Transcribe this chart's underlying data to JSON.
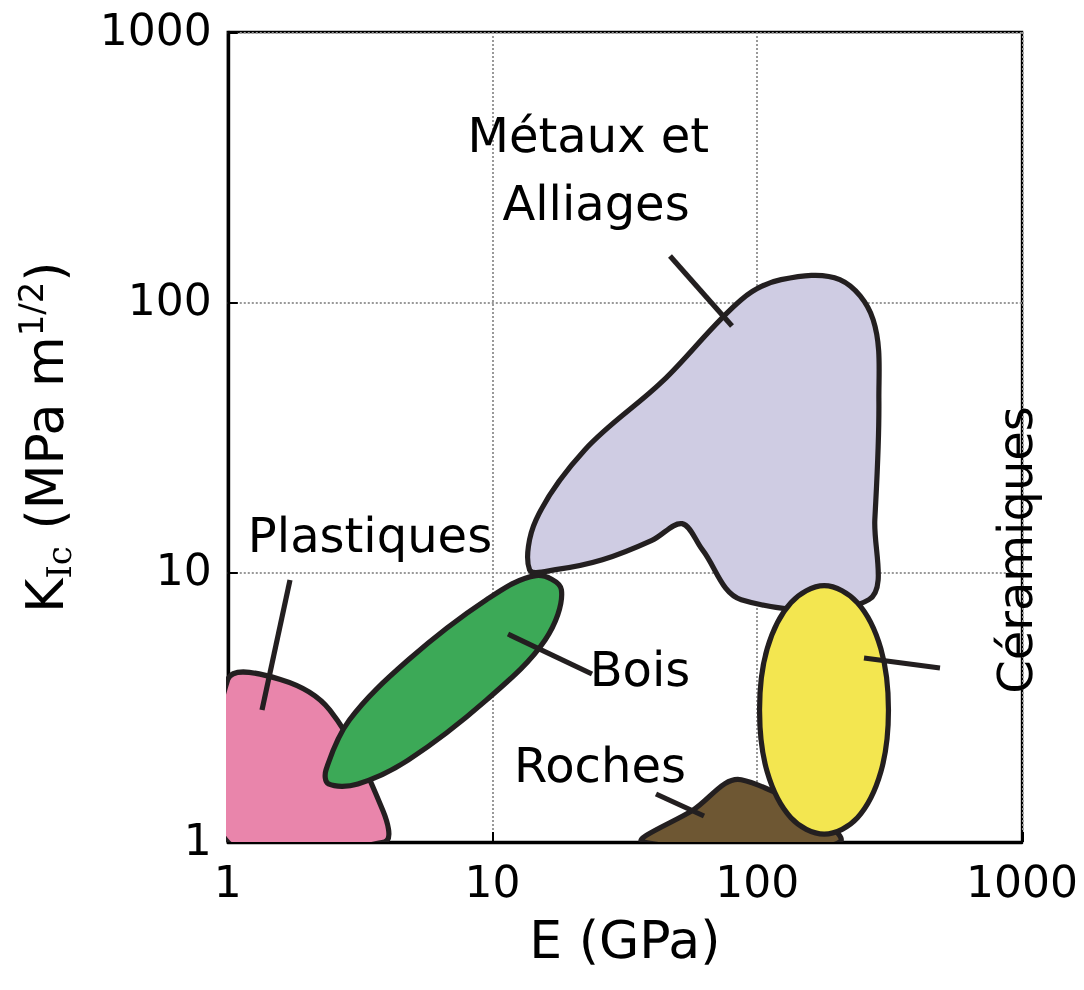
{
  "chart_data": {
    "type": "area",
    "xlabel": "E (GPa)",
    "ylabel": "K$_{Ic}$ (MPa m$^{1/2}$)",
    "log": "xy",
    "grid": true,
    "line_style": "dotted",
    "xlim": [
      1,
      1000
    ],
    "ylim": [
      1,
      1000
    ],
    "xticks": [
      1,
      10,
      100,
      1000
    ],
    "yticks": [
      1,
      10,
      100,
      1000
    ],
    "series": [
      {
        "name": "Plastiques",
        "color": "#e985ab",
        "x": [
          1,
          1,
          1.58,
          2.43,
          3.3,
          3.85,
          3.9
        ],
        "values": [
          1,
          4.0,
          4.0,
          3.08,
          null,
          1.31,
          1
        ]
      },
      {
        "name": "Bois",
        "color": "#3ca957",
        "x": [
          2.35,
          2.88,
          4.8,
          9.5,
          14.6,
          18.2,
          15.8,
          9.5,
          4.8,
          3.1,
          2.4
        ],
        "values": [
          1.85,
          2.83,
          4.72,
          7.9,
          9.7,
          8.6,
          5.6,
          3.36,
          2.01,
          1.64,
          1.64
        ]
      },
      {
        "name": "Métaux et Alliages",
        "color": "#cfcce3",
        "x": [
          13.8,
          14.6,
          22.3,
          44,
          87,
          123,
          205,
          274,
          288,
          278,
          264,
          205,
          123,
          87,
          62,
          52,
          40,
          26,
          17.3
        ],
        "values": [
          10.2,
          15.6,
          28.3,
          51,
          102,
          121,
          121,
          86,
          43,
          15.6,
          7.9,
          null,
          null,
          7.9,
          12.1,
          15.1,
          13.1,
          11.1,
          10.2
        ]
      },
      {
        "name": "Roches",
        "color": "#6e5733",
        "x": [
          37,
          57,
          87,
          134,
          173,
          205
        ],
        "values": [
          1,
          1.31,
          1.7,
          null,
          null,
          1
        ]
      },
      {
        "name": "Céramiques",
        "color": "#f3e650",
        "x": [
          313,
          293,
          239,
          179,
          134,
          109,
          102,
          109,
          134,
          179,
          239,
          293
        ],
        "values": [
          3.08,
          5.2,
          7.7,
          8.9,
          7.7,
          5.2,
          3.08,
          1.82,
          1.23,
          1.07,
          1.23,
          1.82
        ]
      }
    ]
  }
}
